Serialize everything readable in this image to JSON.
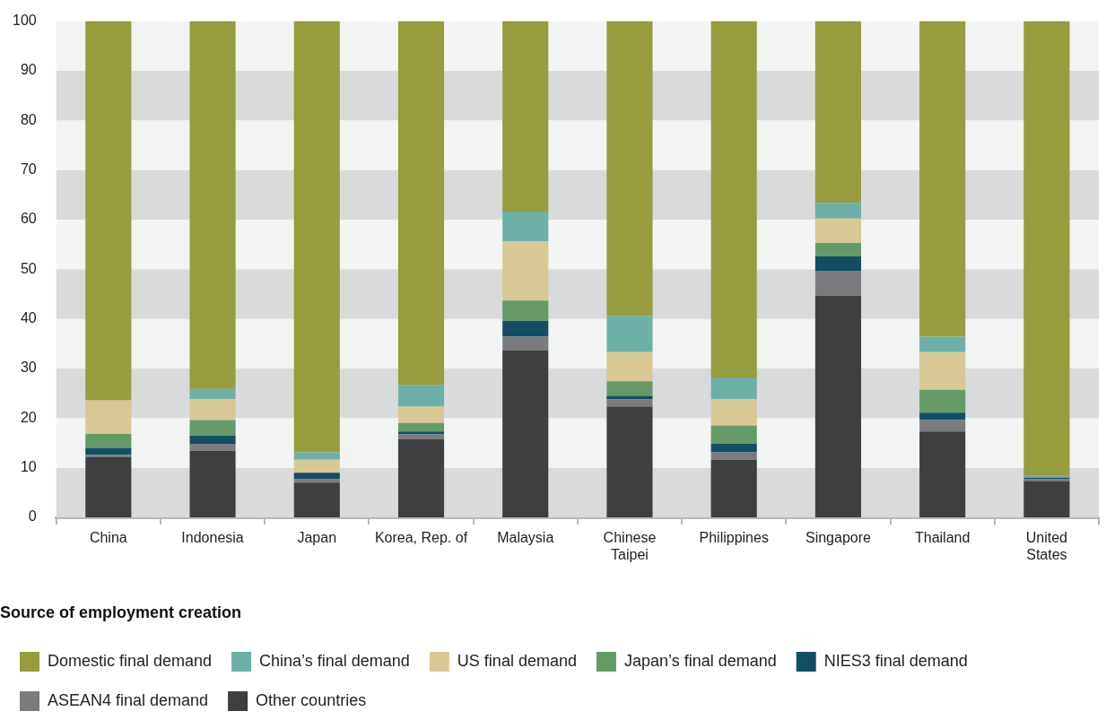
{
  "chart_data": {
    "type": "bar",
    "stacked": true,
    "legend_title": "Source of employment creation",
    "legend": "bottom",
    "categories": [
      "China",
      "Indonesia",
      "Japan",
      "Korea, Rep. of",
      "Malaysia",
      "Chinese Taipei",
      "Philippines",
      "Singapore",
      "Thailand",
      "United States"
    ],
    "ylim": [
      0,
      100
    ],
    "yticks": [
      0,
      10,
      20,
      30,
      40,
      50,
      60,
      70,
      80,
      90,
      100
    ],
    "series": [
      {
        "name": "Other countries",
        "color": "#3f3f3f",
        "values": [
          12.1,
          13.4,
          7.0,
          15.8,
          33.7,
          22.3,
          11.6,
          44.7,
          17.3,
          7.3
        ]
      },
      {
        "name": "ASEAN4 final demand",
        "color": "#7a7b7f",
        "values": [
          0.5,
          1.4,
          0.7,
          0.9,
          2.7,
          1.5,
          1.5,
          5.0,
          2.3,
          0.4
        ]
      },
      {
        "name": "NIES3 final demand",
        "color": "#134d66",
        "values": [
          1.4,
          1.7,
          1.3,
          0.6,
          3.2,
          0.7,
          1.7,
          2.9,
          1.5,
          0.3
        ]
      },
      {
        "name": "Japan’s final demand",
        "color": "#659a67",
        "values": [
          2.8,
          3.1,
          0,
          1.7,
          4.1,
          2.9,
          3.7,
          2.7,
          4.6,
          0
        ]
      },
      {
        "name": "US final demand",
        "color": "#d8c894",
        "values": [
          6.8,
          4.2,
          2.6,
          3.3,
          11.9,
          5.9,
          5.3,
          4.9,
          7.6,
          0
        ]
      },
      {
        "name": "China’s final demand",
        "color": "#6db0a8",
        "values": [
          0,
          2.1,
          1.5,
          4.4,
          6.0,
          7.3,
          4.4,
          3.2,
          3.1,
          0.5
        ]
      },
      {
        "name": "Domestic final demand",
        "color": "#979c3d",
        "values": [
          76.4,
          74.1,
          86.9,
          73.3,
          38.4,
          59.4,
          71.8,
          36.6,
          63.6,
          91.5
        ]
      }
    ]
  }
}
